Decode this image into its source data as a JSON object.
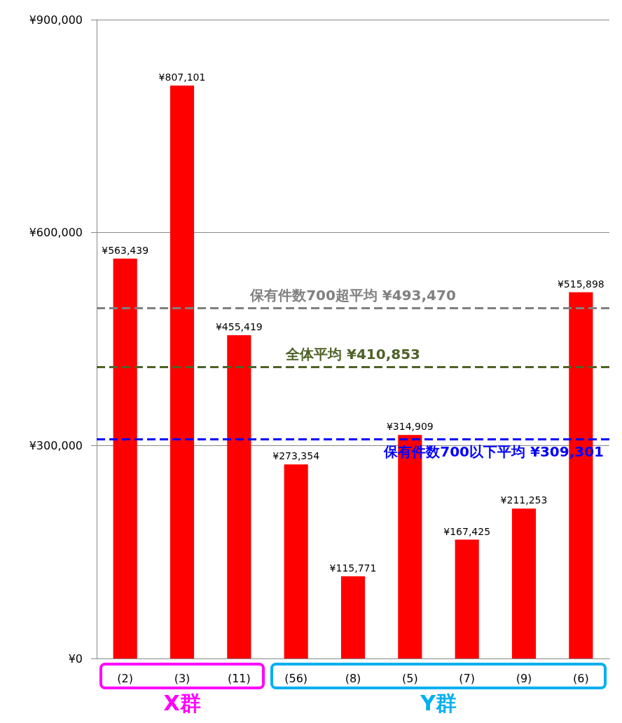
{
  "chart_data": {
    "type": "bar",
    "categories": [
      "(2)",
      "(3)",
      "(11)",
      "(56)",
      "(8)",
      "(5)",
      "(7)",
      "(9)",
      "(6)"
    ],
    "values": [
      563439,
      807101,
      455419,
      273354,
      115771,
      314909,
      167425,
      211253,
      515898
    ],
    "value_labels": [
      "¥563,439",
      "¥807,101",
      "¥455,419",
      "¥273,354",
      "¥115,771",
      "¥314,909",
      "¥167,425",
      "¥211,253",
      "¥515,898"
    ],
    "color": "#ff0000",
    "ylim": [
      0,
      900000
    ],
    "yticks": [
      {
        "value": 0,
        "label": "¥0"
      },
      {
        "value": 300000,
        "label": "¥300,000"
      },
      {
        "value": 600000,
        "label": "¥600,000"
      },
      {
        "value": 900000,
        "label": "¥900,000"
      }
    ],
    "grid": "y",
    "ref_lines": [
      {
        "axis": "y",
        "value": 493470,
        "label": "保有件数700超平均 ¥493,470",
        "color": "#808080",
        "line_style": "dashed"
      },
      {
        "axis": "y",
        "value": 410853,
        "label": "全体平均 ¥410,853",
        "color": "#4f6228",
        "line_style": "dashed"
      },
      {
        "axis": "y",
        "value": 309301,
        "label": "保有件数700以下平均 ¥309,301",
        "color": "#0000ff",
        "line_style": "dashed"
      }
    ],
    "annotations": [
      "X群",
      "Y群"
    ]
  }
}
